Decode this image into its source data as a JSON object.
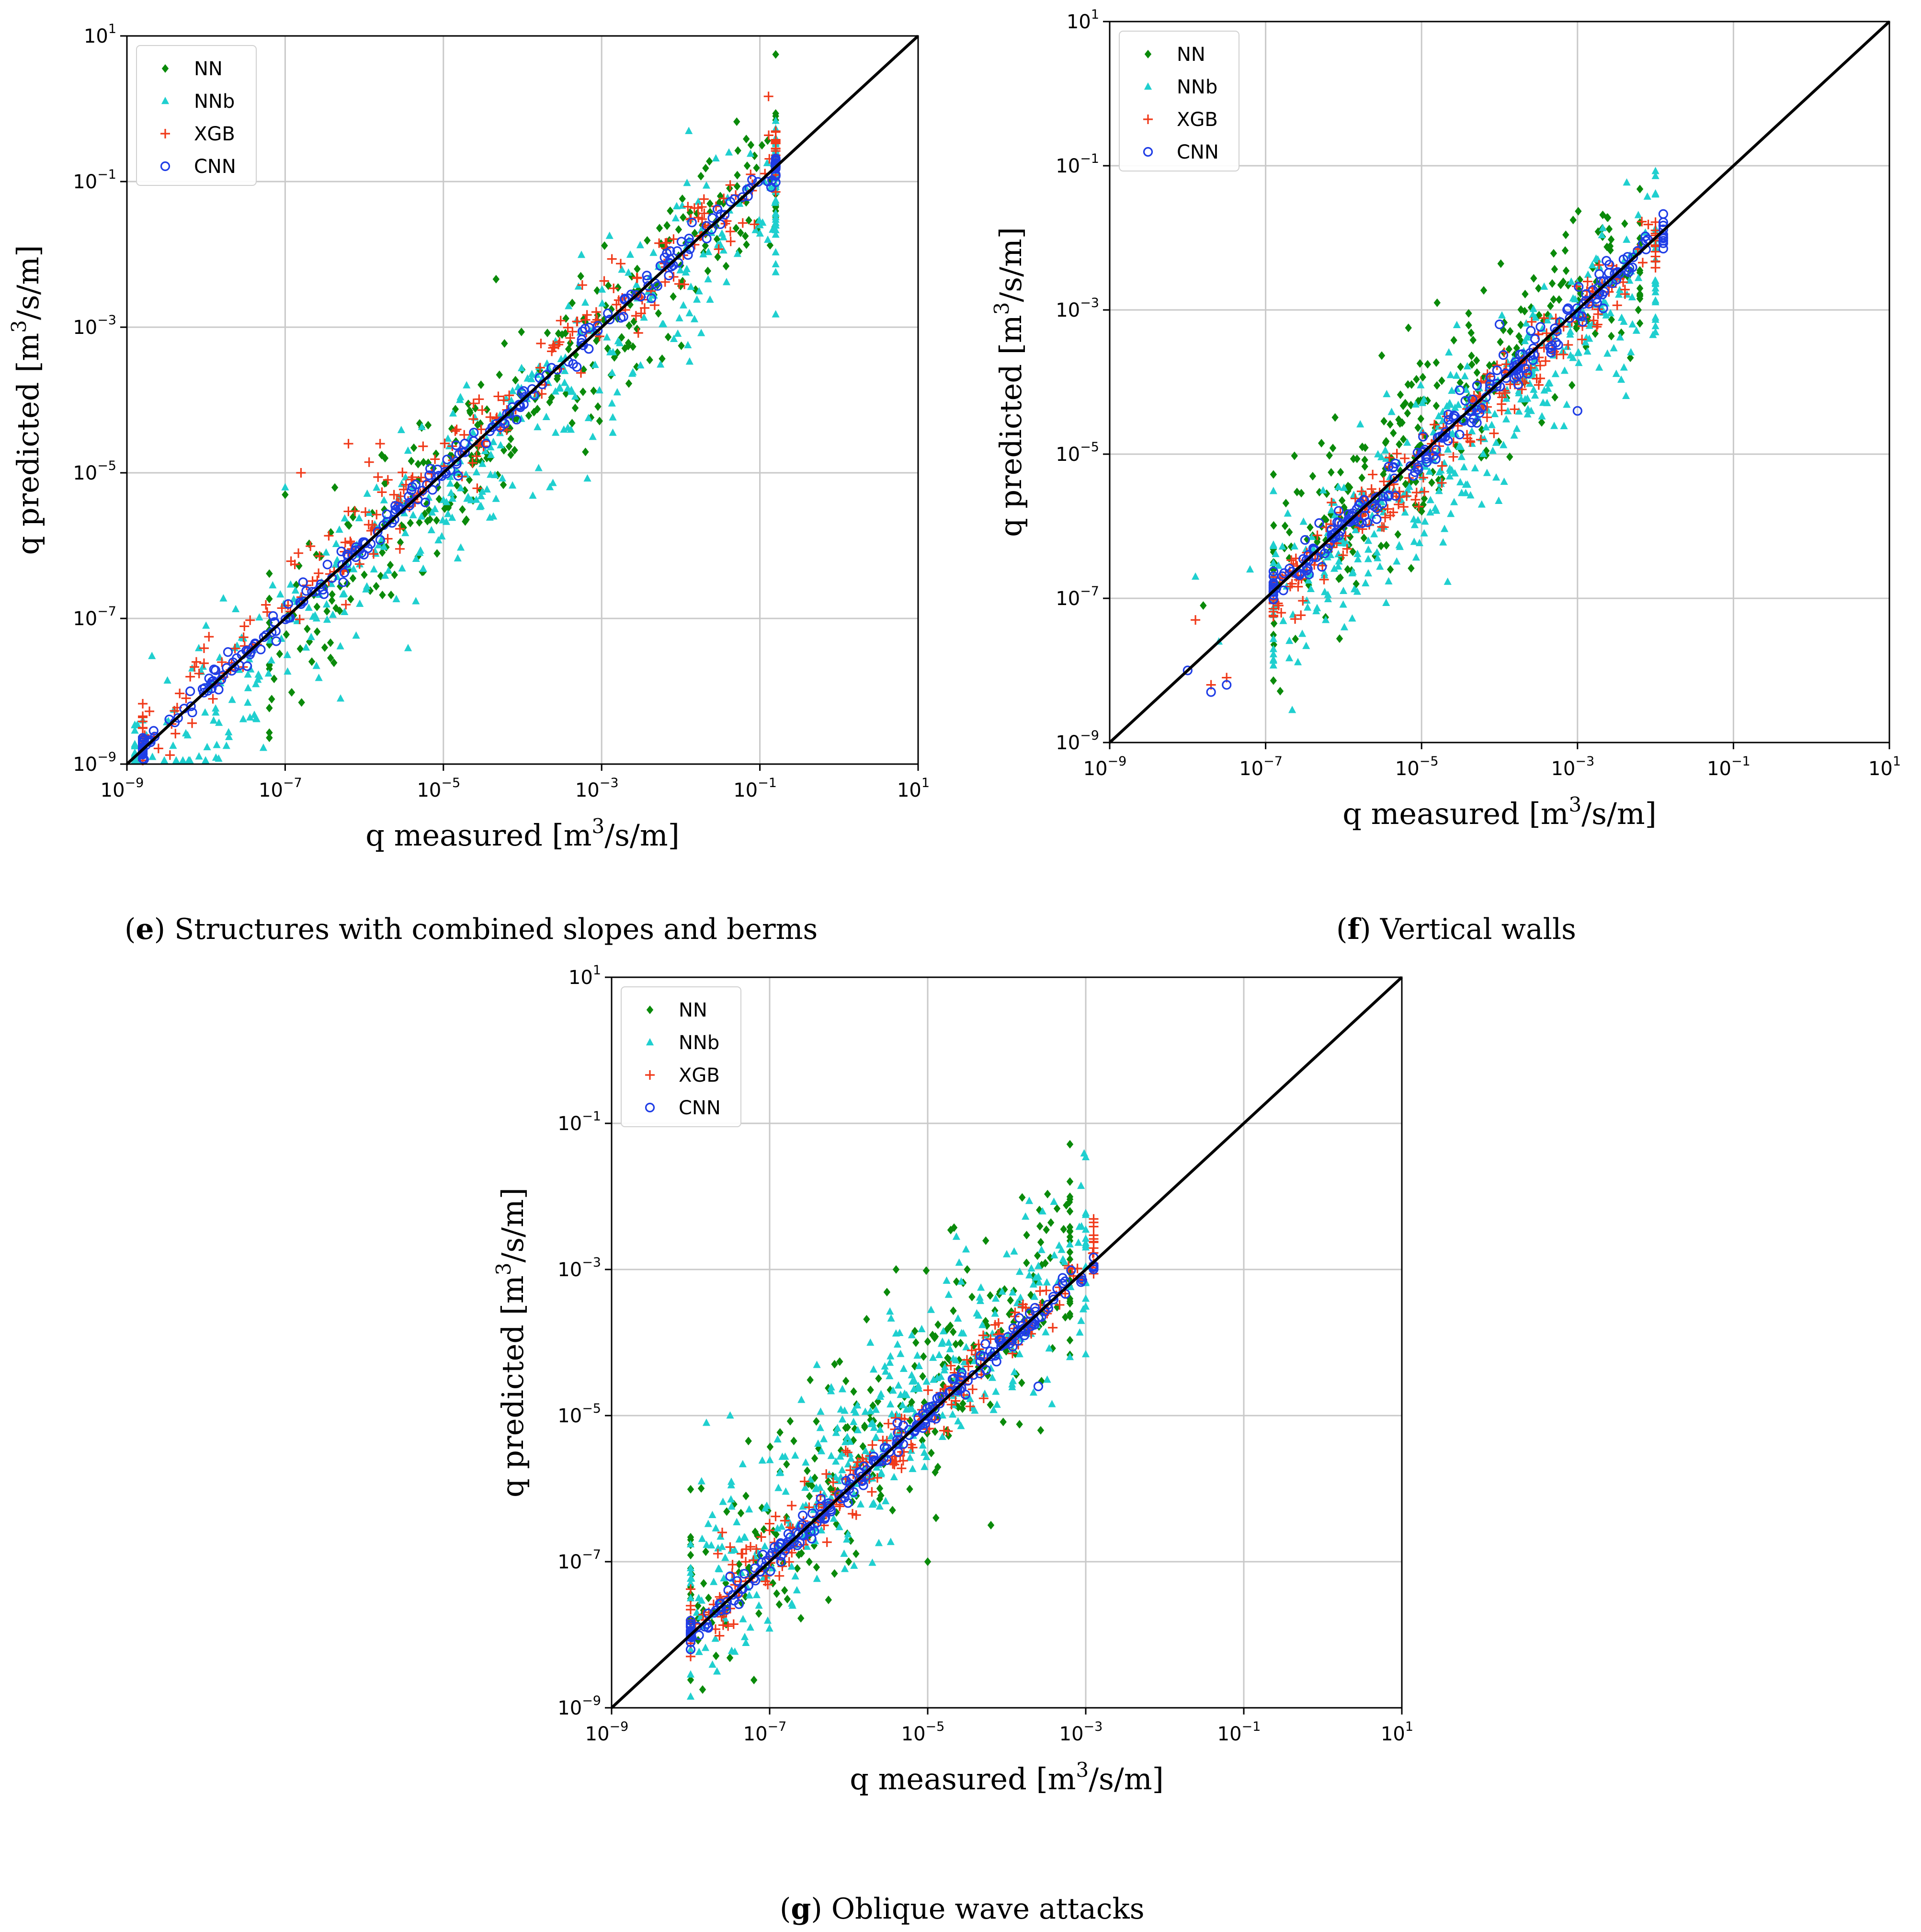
{
  "colors": {
    "NN": "#0a8a0a",
    "NNb": "#1fcfcf",
    "XGB": "#f03a1a",
    "CNN": "#1f3de6",
    "identity": "#000000",
    "grid": "#c9c9c9"
  },
  "chart_data": [
    {
      "type": "scatter",
      "panel": "e",
      "caption_letter": "e",
      "caption_text": " Structures with combined slopes and berms",
      "xlabel": "q measured [m",
      "ylabel": "q predicted [m",
      "label_sup": "3",
      "label_suffix": "/s/m]",
      "axis_scale": "log",
      "xlim_exp": [
        -9,
        1
      ],
      "ylim_exp": [
        -9,
        1
      ],
      "ticks": [
        "10",
        "10",
        "10",
        "10",
        "10",
        "10"
      ],
      "tick_exponents": [
        "−9",
        "−7",
        "−5",
        "−3",
        "−1",
        "1"
      ],
      "grid": true,
      "legend_position": "upper-left",
      "legend": [
        "NN",
        "NNb",
        "XGB",
        "CNN"
      ],
      "identity_line": true,
      "series": [
        {
          "name": "NN",
          "marker": "diamond",
          "x_range_exp": [
            -7.2,
            -0.8
          ],
          "scatter_dex": 0.55,
          "bias_dex": -0.1,
          "n": 320,
          "outliers": [
            [
              -7,
              -5.3
            ],
            [
              -6.5,
              -7.4
            ],
            [
              -3.5,
              -3.1
            ],
            [
              -1.5,
              -1.2
            ]
          ]
        },
        {
          "name": "NNb",
          "marker": "triangle",
          "x_range_exp": [
            -8.9,
            -0.8
          ],
          "scatter_dex": 0.6,
          "bias_dex": -0.25,
          "n": 420,
          "outliers": [
            [
              -8.8,
              -8.4
            ],
            [
              -8.0,
              -7.1
            ],
            [
              -7.0,
              -5.2
            ],
            [
              -6.3,
              -8.1
            ],
            [
              -1.0,
              -1.6
            ],
            [
              -0.8,
              -1.6
            ],
            [
              -0.9,
              -1.8
            ]
          ]
        },
        {
          "name": "XGB",
          "marker": "plus",
          "x_range_exp": [
            -8.8,
            -0.8
          ],
          "scatter_dex": 0.28,
          "bias_dex": 0.15,
          "n": 260,
          "outliers": [
            [
              -8.8,
              -8.5
            ],
            [
              -8.2,
              -7.8
            ],
            [
              -7.8,
              -7.6
            ],
            [
              -6.2,
              -4.6
            ],
            [
              -5.8,
              -4.6
            ],
            [
              -6.8,
              -5.0
            ]
          ]
        },
        {
          "name": "CNN",
          "marker": "circle",
          "x_range_exp": [
            -8.8,
            -0.8
          ],
          "scatter_dex": 0.1,
          "bias_dex": 0.0,
          "n": 260,
          "outliers": [
            [
              -8.7,
              -8.7
            ],
            [
              -8.2,
              -8.0
            ],
            [
              -7.9,
              -7.7
            ],
            [
              -1.6,
              -1.5
            ],
            [
              -0.9,
              -1.0
            ]
          ]
        }
      ]
    },
    {
      "type": "scatter",
      "panel": "f",
      "caption_letter": "f",
      "caption_text": " Vertical walls",
      "xlabel": "q measured [m",
      "ylabel": "q predicted [m",
      "label_sup": "3",
      "label_suffix": "/s/m]",
      "axis_scale": "log",
      "xlim_exp": [
        -9,
        1
      ],
      "ylim_exp": [
        -9,
        1
      ],
      "ticks": [
        "10",
        "10",
        "10",
        "10",
        "10",
        "10"
      ],
      "tick_exponents": [
        "−9",
        "−7",
        "−5",
        "−3",
        "−1",
        "1"
      ],
      "grid": true,
      "legend_position": "upper-left",
      "legend": [
        "NN",
        "NNb",
        "XGB",
        "CNN"
      ],
      "identity_line": true,
      "series": [
        {
          "name": "NN",
          "marker": "diamond",
          "x_range_exp": [
            -6.9,
            -2.2
          ],
          "scatter_dex": 0.65,
          "bias_dex": 0.25,
          "n": 300,
          "outliers": [
            [
              -7.8,
              -7.1
            ],
            [
              -4.8,
              -2.9
            ],
            [
              -3.5,
              -2.7
            ],
            [
              -5.4,
              -6.6
            ]
          ]
        },
        {
          "name": "NNb",
          "marker": "triangle",
          "x_range_exp": [
            -6.9,
            -2.0
          ],
          "scatter_dex": 0.6,
          "bias_dex": -0.3,
          "n": 420,
          "outliers": [
            [
              -7.9,
              -6.7
            ],
            [
              -7.6,
              -7.6
            ],
            [
              -7.2,
              -6.6
            ]
          ]
        },
        {
          "name": "XGB",
          "marker": "plus",
          "x_range_exp": [
            -6.9,
            -2.0
          ],
          "scatter_dex": 0.25,
          "bias_dex": -0.1,
          "n": 240,
          "outliers": [
            [
              -7.9,
              -7.3
            ],
            [
              -7.7,
              -8.2
            ],
            [
              -7.5,
              -8.1
            ],
            [
              -6.8,
              -7.2
            ]
          ]
        },
        {
          "name": "CNN",
          "marker": "circle",
          "x_range_exp": [
            -6.9,
            -1.9
          ],
          "scatter_dex": 0.12,
          "bias_dex": 0.0,
          "n": 240,
          "outliers": [
            [
              -8.0,
              -8.0
            ],
            [
              -7.7,
              -8.3
            ],
            [
              -7.5,
              -8.2
            ],
            [
              -4.0,
              -3.2
            ],
            [
              -3.0,
              -4.4
            ]
          ]
        }
      ]
    },
    {
      "type": "scatter",
      "panel": "g",
      "caption_letter": "g",
      "caption_text": " Oblique wave attacks",
      "xlabel": "q measured [m",
      "ylabel": "q predicted [m",
      "label_sup": "3",
      "label_suffix": "/s/m]",
      "axis_scale": "log",
      "xlim_exp": [
        -9,
        1
      ],
      "ylim_exp": [
        -9,
        1
      ],
      "ticks": [
        "10",
        "10",
        "10",
        "10",
        "10",
        "10"
      ],
      "tick_exponents": [
        "−9",
        "−7",
        "−5",
        "−3",
        "−1",
        "1"
      ],
      "grid": true,
      "legend_position": "upper-left",
      "legend": [
        "NN",
        "NNb",
        "XGB",
        "CNN"
      ],
      "identity_line": true,
      "series": [
        {
          "name": "NN",
          "marker": "diamond",
          "x_range_exp": [
            -8.0,
            -3.2
          ],
          "scatter_dex": 0.7,
          "bias_dex": 0.3,
          "n": 300,
          "outliers": [
            [
              -8.0,
              -6.7
            ],
            [
              -7.3,
              -6.1
            ],
            [
              -5.4,
              -3.0
            ],
            [
              -4.5,
              -3.0
            ],
            [
              -5.0,
              -7.0
            ],
            [
              -6.0,
              -7.0
            ],
            [
              -4.2,
              -6.5
            ]
          ]
        },
        {
          "name": "NNb",
          "marker": "triangle",
          "x_range_exp": [
            -8.0,
            -3.0
          ],
          "scatter_dex": 0.65,
          "bias_dex": 0.35,
          "n": 400,
          "outliers": [
            [
              -7.8,
              -5.1
            ],
            [
              -7.5,
              -5.0
            ],
            [
              -3.6,
              -3.1
            ],
            [
              -3.2,
              -4.2
            ]
          ]
        },
        {
          "name": "XGB",
          "marker": "plus",
          "x_range_exp": [
            -8.0,
            -2.9
          ],
          "scatter_dex": 0.25,
          "bias_dex": 0.05,
          "n": 240,
          "outliers": [
            [
              -8.0,
              -7.8
            ],
            [
              -7.6,
              -6.6
            ],
            [
              -7.5,
              -6.8
            ]
          ]
        },
        {
          "name": "CNN",
          "marker": "circle",
          "x_range_exp": [
            -8.0,
            -2.9
          ],
          "scatter_dex": 0.1,
          "bias_dex": 0.0,
          "n": 240,
          "outliers": [
            [
              -8.0,
              -8.0
            ],
            [
              -7.7,
              -7.7
            ],
            [
              -7.5,
              -7.2
            ],
            [
              -3.6,
              -4.6
            ]
          ]
        }
      ]
    }
  ]
}
